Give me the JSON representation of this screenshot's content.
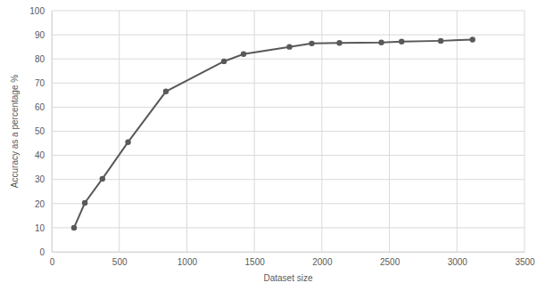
{
  "chart_data": {
    "type": "line",
    "x_label": "Dataset size",
    "y_label": "Accuracy as a percentage %",
    "x": [
      165,
      245,
      375,
      565,
      845,
      1275,
      1420,
      1760,
      1925,
      2130,
      2440,
      2590,
      2880,
      3115
    ],
    "values": [
      10,
      20.3,
      30.3,
      45.5,
      66.5,
      79,
      82,
      85,
      86.4,
      86.6,
      86.8,
      87.2,
      87.5,
      88
    ],
    "color": "#595959",
    "marker": "circle",
    "xlim": [
      0,
      3500
    ],
    "xticks": [
      0,
      500,
      1000,
      1500,
      2000,
      2500,
      3000,
      3500
    ],
    "ylim": [
      0,
      100
    ],
    "yticks": [
      0,
      10,
      20,
      30,
      40,
      50,
      60,
      70,
      80,
      90,
      100
    ],
    "grid": true
  }
}
